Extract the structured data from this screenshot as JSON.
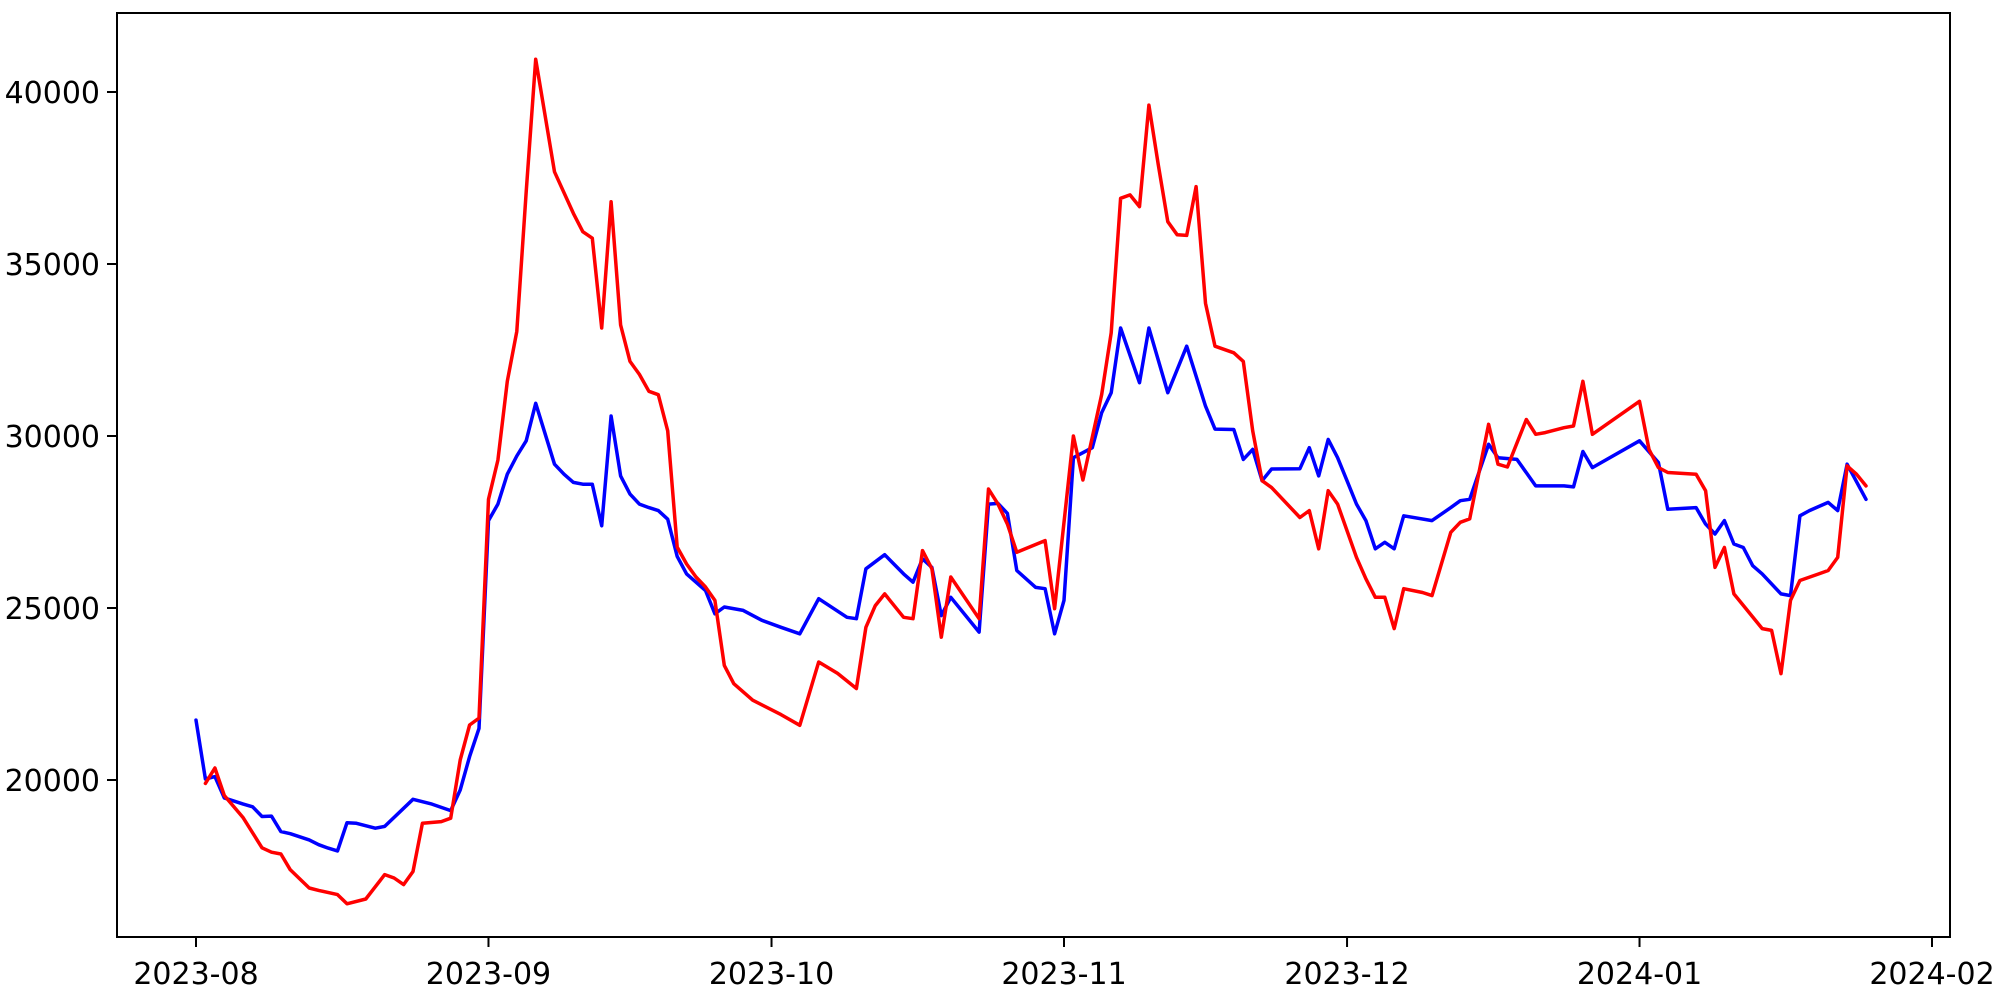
{
  "chart_data": {
    "type": "line",
    "title": "",
    "grid": false,
    "legend": null,
    "background": "#ffffff",
    "frame_color": "#000000",
    "x_axis": {
      "tick_labels": [
        "2023-08",
        "2023-09",
        "2023-10",
        "2023-11",
        "2023-12",
        "2024-01",
        "2024-02"
      ],
      "tick_dates": [
        "2023-08-01",
        "2023-09-01",
        "2023-10-01",
        "2023-11-01",
        "2023-12-01",
        "2024-01-01",
        "2024-02-01"
      ],
      "range_dates": [
        "2023-07-24",
        "2024-02-03"
      ]
    },
    "y_axis": {
      "ticks": [
        20000,
        25000,
        30000,
        35000,
        40000
      ],
      "range": [
        15400,
        42350
      ]
    },
    "series": [
      {
        "name": "blue",
        "color": "#0000ff",
        "points": [
          [
            "2023-08-01",
            21740
          ],
          [
            "2023-08-02",
            20030
          ],
          [
            "2023-08-03",
            20100
          ],
          [
            "2023-08-04",
            19480
          ],
          [
            "2023-08-06",
            19300
          ],
          [
            "2023-08-07",
            19220
          ],
          [
            "2023-08-08",
            18940
          ],
          [
            "2023-08-09",
            18950
          ],
          [
            "2023-08-10",
            18500
          ],
          [
            "2023-08-11",
            18440
          ],
          [
            "2023-08-13",
            18260
          ],
          [
            "2023-08-14",
            18120
          ],
          [
            "2023-08-15",
            18020
          ],
          [
            "2023-08-16",
            17940
          ],
          [
            "2023-08-17",
            18760
          ],
          [
            "2023-08-18",
            18740
          ],
          [
            "2023-08-20",
            18600
          ],
          [
            "2023-08-21",
            18650
          ],
          [
            "2023-08-24",
            19440
          ],
          [
            "2023-08-26",
            19300
          ],
          [
            "2023-08-28",
            19110
          ],
          [
            "2023-08-29",
            19710
          ],
          [
            "2023-08-30",
            20680
          ],
          [
            "2023-08-31",
            21500
          ],
          [
            "2023-09-01",
            27540
          ],
          [
            "2023-09-02",
            28020
          ],
          [
            "2023-09-03",
            28890
          ],
          [
            "2023-09-04",
            29420
          ],
          [
            "2023-09-05",
            29860
          ],
          [
            "2023-09-06",
            30950
          ],
          [
            "2023-09-08",
            29180
          ],
          [
            "2023-09-09",
            28890
          ],
          [
            "2023-09-10",
            28650
          ],
          [
            "2023-09-11",
            28600
          ],
          [
            "2023-09-12",
            28600
          ],
          [
            "2023-09-13",
            27390
          ],
          [
            "2023-09-14",
            30580
          ],
          [
            "2023-09-15",
            28840
          ],
          [
            "2023-09-16",
            28310
          ],
          [
            "2023-09-17",
            28020
          ],
          [
            "2023-09-18",
            27920
          ],
          [
            "2023-09-19",
            27830
          ],
          [
            "2023-09-20",
            27580
          ],
          [
            "2023-09-21",
            26500
          ],
          [
            "2023-09-22",
            25990
          ],
          [
            "2023-09-23",
            25750
          ],
          [
            "2023-09-24",
            25510
          ],
          [
            "2023-09-25",
            24830
          ],
          [
            "2023-09-26",
            25030
          ],
          [
            "2023-09-28",
            24930
          ],
          [
            "2023-09-30",
            24640
          ],
          [
            "2023-10-02",
            24440
          ],
          [
            "2023-10-04",
            24250
          ],
          [
            "2023-10-06",
            25270
          ],
          [
            "2023-10-09",
            24730
          ],
          [
            "2023-10-10",
            24690
          ],
          [
            "2023-10-11",
            26140
          ],
          [
            "2023-10-13",
            26550
          ],
          [
            "2023-10-15",
            25990
          ],
          [
            "2023-10-16",
            25750
          ],
          [
            "2023-10-17",
            26430
          ],
          [
            "2023-10-18",
            26180
          ],
          [
            "2023-10-19",
            24780
          ],
          [
            "2023-10-20",
            25310
          ],
          [
            "2023-10-23",
            24300
          ],
          [
            "2023-10-24",
            28020
          ],
          [
            "2023-10-25",
            28040
          ],
          [
            "2023-10-26",
            27750
          ],
          [
            "2023-10-27",
            26090
          ],
          [
            "2023-10-29",
            25600
          ],
          [
            "2023-10-30",
            25560
          ],
          [
            "2023-10-31",
            24250
          ],
          [
            "2023-11-01",
            25220
          ],
          [
            "2023-11-02",
            29370
          ],
          [
            "2023-11-04",
            29660
          ],
          [
            "2023-11-05",
            30680
          ],
          [
            "2023-11-06",
            31260
          ],
          [
            "2023-11-07",
            33140
          ],
          [
            "2023-11-09",
            31550
          ],
          [
            "2023-11-10",
            33140
          ],
          [
            "2023-11-12",
            31260
          ],
          [
            "2023-11-14",
            32610
          ],
          [
            "2023-11-16",
            30870
          ],
          [
            "2023-11-17",
            30200
          ],
          [
            "2023-11-19",
            30190
          ],
          [
            "2023-11-20",
            29320
          ],
          [
            "2023-11-21",
            29610
          ],
          [
            "2023-11-22",
            28700
          ],
          [
            "2023-11-23",
            29040
          ],
          [
            "2023-11-26",
            29050
          ],
          [
            "2023-11-27",
            29660
          ],
          [
            "2023-11-28",
            28840
          ],
          [
            "2023-11-29",
            29900
          ],
          [
            "2023-11-30",
            29370
          ],
          [
            "2023-12-01",
            28700
          ],
          [
            "2023-12-02",
            28020
          ],
          [
            "2023-12-03",
            27540
          ],
          [
            "2023-12-04",
            26720
          ],
          [
            "2023-12-05",
            26910
          ],
          [
            "2023-12-06",
            26720
          ],
          [
            "2023-12-07",
            27680
          ],
          [
            "2023-12-10",
            27540
          ],
          [
            "2023-12-12",
            27920
          ],
          [
            "2023-12-13",
            28120
          ],
          [
            "2023-12-14",
            28160
          ],
          [
            "2023-12-16",
            29760
          ],
          [
            "2023-12-17",
            29370
          ],
          [
            "2023-12-19",
            29320
          ],
          [
            "2023-12-21",
            28550
          ],
          [
            "2023-12-24",
            28550
          ],
          [
            "2023-12-25",
            28520
          ],
          [
            "2023-12-26",
            29550
          ],
          [
            "2023-12-27",
            29080
          ],
          [
            "2024-01-01",
            29860
          ],
          [
            "2024-01-03",
            29230
          ],
          [
            "2024-01-04",
            27870
          ],
          [
            "2024-01-07",
            27920
          ],
          [
            "2024-01-08",
            27440
          ],
          [
            "2024-01-09",
            27150
          ],
          [
            "2024-01-10",
            27540
          ],
          [
            "2024-01-11",
            26860
          ],
          [
            "2024-01-12",
            26760
          ],
          [
            "2024-01-13",
            26230
          ],
          [
            "2024-01-14",
            25990
          ],
          [
            "2024-01-16",
            25410
          ],
          [
            "2024-01-17",
            25360
          ],
          [
            "2024-01-18",
            27680
          ],
          [
            "2024-01-19",
            27830
          ],
          [
            "2024-01-21",
            28070
          ],
          [
            "2024-01-22",
            27830
          ],
          [
            "2024-01-23",
            29180
          ],
          [
            "2024-01-25",
            28160
          ]
        ]
      },
      {
        "name": "red",
        "color": "#ff0000",
        "points": [
          [
            "2023-08-02",
            19900
          ],
          [
            "2023-08-03",
            20350
          ],
          [
            "2023-08-04",
            19550
          ],
          [
            "2023-08-06",
            18900
          ],
          [
            "2023-08-08",
            18030
          ],
          [
            "2023-08-09",
            17900
          ],
          [
            "2023-08-10",
            17850
          ],
          [
            "2023-08-11",
            17390
          ],
          [
            "2023-08-13",
            16860
          ],
          [
            "2023-08-14",
            16790
          ],
          [
            "2023-08-16",
            16670
          ],
          [
            "2023-08-17",
            16400
          ],
          [
            "2023-08-19",
            16540
          ],
          [
            "2023-08-21",
            17250
          ],
          [
            "2023-08-22",
            17150
          ],
          [
            "2023-08-23",
            16960
          ],
          [
            "2023-08-24",
            17340
          ],
          [
            "2023-08-25",
            18740
          ],
          [
            "2023-08-27",
            18790
          ],
          [
            "2023-08-28",
            18890
          ],
          [
            "2023-08-29",
            20580
          ],
          [
            "2023-08-30",
            21600
          ],
          [
            "2023-08-31",
            21800
          ],
          [
            "2023-09-01",
            28160
          ],
          [
            "2023-09-02",
            29300
          ],
          [
            "2023-09-03",
            31590
          ],
          [
            "2023-09-04",
            33040
          ],
          [
            "2023-09-05",
            37100
          ],
          [
            "2023-09-06",
            40950
          ],
          [
            "2023-09-08",
            37680
          ],
          [
            "2023-09-10",
            36470
          ],
          [
            "2023-09-11",
            35940
          ],
          [
            "2023-09-12",
            35750
          ],
          [
            "2023-09-13",
            33140
          ],
          [
            "2023-09-14",
            36810
          ],
          [
            "2023-09-15",
            33230
          ],
          [
            "2023-09-16",
            32170
          ],
          [
            "2023-09-17",
            31790
          ],
          [
            "2023-09-18",
            31300
          ],
          [
            "2023-09-19",
            31200
          ],
          [
            "2023-09-20",
            30150
          ],
          [
            "2023-09-21",
            26770
          ],
          [
            "2023-09-22",
            26280
          ],
          [
            "2023-09-23",
            25900
          ],
          [
            "2023-09-24",
            25610
          ],
          [
            "2023-09-25",
            25220
          ],
          [
            "2023-09-26",
            23330
          ],
          [
            "2023-09-27",
            22800
          ],
          [
            "2023-09-29",
            22320
          ],
          [
            "2023-10-02",
            21900
          ],
          [
            "2023-10-04",
            21590
          ],
          [
            "2023-10-06",
            23430
          ],
          [
            "2023-10-08",
            23100
          ],
          [
            "2023-10-10",
            22660
          ],
          [
            "2023-10-11",
            24440
          ],
          [
            "2023-10-12",
            25070
          ],
          [
            "2023-10-13",
            25410
          ],
          [
            "2023-10-15",
            24730
          ],
          [
            "2023-10-16",
            24690
          ],
          [
            "2023-10-17",
            26670
          ],
          [
            "2023-10-18",
            26140
          ],
          [
            "2023-10-19",
            24150
          ],
          [
            "2023-10-20",
            25900
          ],
          [
            "2023-10-23",
            24690
          ],
          [
            "2023-10-24",
            28460
          ],
          [
            "2023-10-25",
            28020
          ],
          [
            "2023-10-26",
            27440
          ],
          [
            "2023-10-27",
            26620
          ],
          [
            "2023-10-30",
            26960
          ],
          [
            "2023-10-31",
            24980
          ],
          [
            "2023-11-02",
            30000
          ],
          [
            "2023-11-03",
            28720
          ],
          [
            "2023-11-05",
            31210
          ],
          [
            "2023-11-06",
            33000
          ],
          [
            "2023-11-07",
            36910
          ],
          [
            "2023-11-08",
            37010
          ],
          [
            "2023-11-09",
            36670
          ],
          [
            "2023-11-10",
            39620
          ],
          [
            "2023-11-11",
            37880
          ],
          [
            "2023-11-12",
            36230
          ],
          [
            "2023-11-13",
            35850
          ],
          [
            "2023-11-14",
            35830
          ],
          [
            "2023-11-15",
            37250
          ],
          [
            "2023-11-16",
            33860
          ],
          [
            "2023-11-17",
            32610
          ],
          [
            "2023-11-19",
            32420
          ],
          [
            "2023-11-20",
            32170
          ],
          [
            "2023-11-21",
            30150
          ],
          [
            "2023-11-22",
            28700
          ],
          [
            "2023-11-23",
            28500
          ],
          [
            "2023-11-26",
            27630
          ],
          [
            "2023-11-27",
            27830
          ],
          [
            "2023-11-28",
            26720
          ],
          [
            "2023-11-29",
            28410
          ],
          [
            "2023-11-30",
            28020
          ],
          [
            "2023-12-02",
            26470
          ],
          [
            "2023-12-03",
            25850
          ],
          [
            "2023-12-04",
            25310
          ],
          [
            "2023-12-05",
            25310
          ],
          [
            "2023-12-06",
            24400
          ],
          [
            "2023-12-07",
            25560
          ],
          [
            "2023-12-09",
            25450
          ],
          [
            "2023-12-10",
            25360
          ],
          [
            "2023-12-12",
            27200
          ],
          [
            "2023-12-13",
            27490
          ],
          [
            "2023-12-14",
            27590
          ],
          [
            "2023-12-16",
            30340
          ],
          [
            "2023-12-17",
            29180
          ],
          [
            "2023-12-18",
            29100
          ],
          [
            "2023-12-20",
            30480
          ],
          [
            "2023-12-21",
            30050
          ],
          [
            "2023-12-22",
            30100
          ],
          [
            "2023-12-24",
            30240
          ],
          [
            "2023-12-25",
            30290
          ],
          [
            "2023-12-26",
            31590
          ],
          [
            "2023-12-27",
            30050
          ],
          [
            "2024-01-01",
            31010
          ],
          [
            "2024-01-02",
            29610
          ],
          [
            "2024-01-03",
            29080
          ],
          [
            "2024-01-04",
            28940
          ],
          [
            "2024-01-07",
            28890
          ],
          [
            "2024-01-08",
            28410
          ],
          [
            "2024-01-09",
            26180
          ],
          [
            "2024-01-10",
            26760
          ],
          [
            "2024-01-11",
            25410
          ],
          [
            "2024-01-14",
            24400
          ],
          [
            "2024-01-15",
            24350
          ],
          [
            "2024-01-16",
            23090
          ],
          [
            "2024-01-17",
            25220
          ],
          [
            "2024-01-18",
            25800
          ],
          [
            "2024-01-20",
            25990
          ],
          [
            "2024-01-21",
            26090
          ],
          [
            "2024-01-22",
            26470
          ],
          [
            "2024-01-23",
            29130
          ],
          [
            "2024-01-24",
            28890
          ],
          [
            "2024-01-25",
            28550
          ]
        ]
      }
    ]
  }
}
